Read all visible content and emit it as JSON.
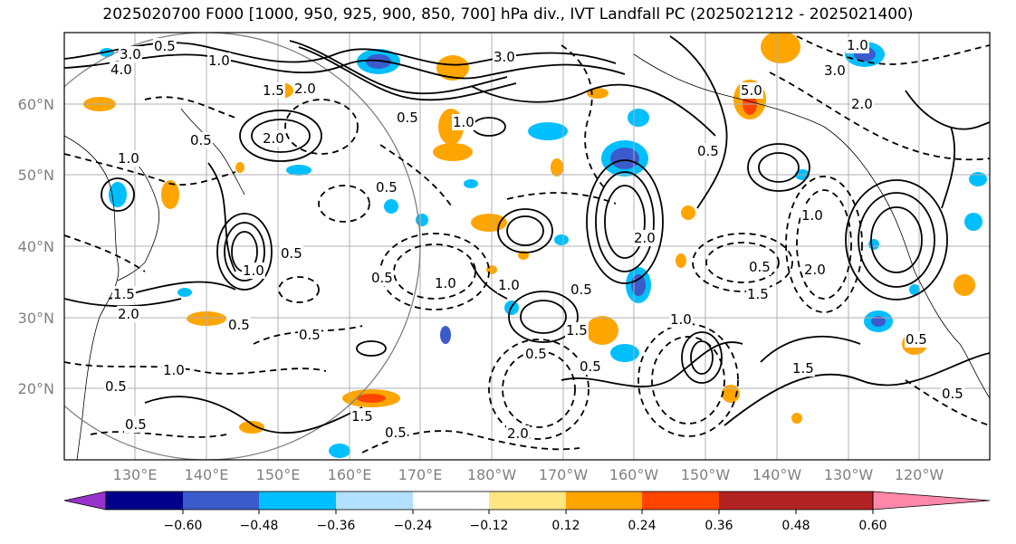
{
  "title": "2025020700 F000 [1000, 950, 925, 900, 850, 700] hPa div., IVT Landfall PC (2025021212 - 2025021400)",
  "map": {
    "lat_labels": [
      "60°N",
      "50°N",
      "40°N",
      "30°N",
      "20°N"
    ],
    "lon_labels": [
      "130°E",
      "140°E",
      "150°E",
      "160°E",
      "170°E",
      "180°W",
      "170°W",
      "160°W",
      "150°W",
      "140°W",
      "130°W",
      "120°W"
    ],
    "contour_labels": [
      "3.0",
      "4.0",
      "0.5",
      "1.0",
      "2.0",
      "1.5",
      "0.5",
      "1.0",
      "0.5",
      "3.0",
      "2.0",
      "1.0",
      "0.5",
      "1.0",
      "2.0",
      "0.5",
      "1.5",
      "0.5",
      "0.5",
      "1.0",
      "0.5",
      "0.5",
      "1.5",
      "1.0",
      "0.5",
      "0.5",
      "2.0",
      "1.0",
      "0.5",
      "0.5",
      "0.5",
      "1.5",
      "2.0",
      "1.5",
      "0.5",
      "1.0",
      "0.5",
      "1.5",
      "3.0",
      "2.0",
      "1.0",
      "5.0",
      "1.0",
      "2.0",
      "0.5",
      "0.5"
    ],
    "colors": {
      "line": "#000000",
      "grid": "#b0b0b0",
      "coast": "#000000",
      "circle": "#808080"
    }
  },
  "colorbar": {
    "ticks": [
      "−0.60",
      "−0.48",
      "−0.36",
      "−0.24",
      "−0.12",
      "0.12",
      "0.24",
      "0.36",
      "0.48",
      "0.60"
    ],
    "colors": [
      "#9932cc",
      "#00008b",
      "#3b5bcc",
      "#00bfff",
      "#b3e0ff",
      "#ffffff",
      "#ffe680",
      "#ffa500",
      "#ff4500",
      "#b22222",
      "#ff88aa"
    ]
  }
}
